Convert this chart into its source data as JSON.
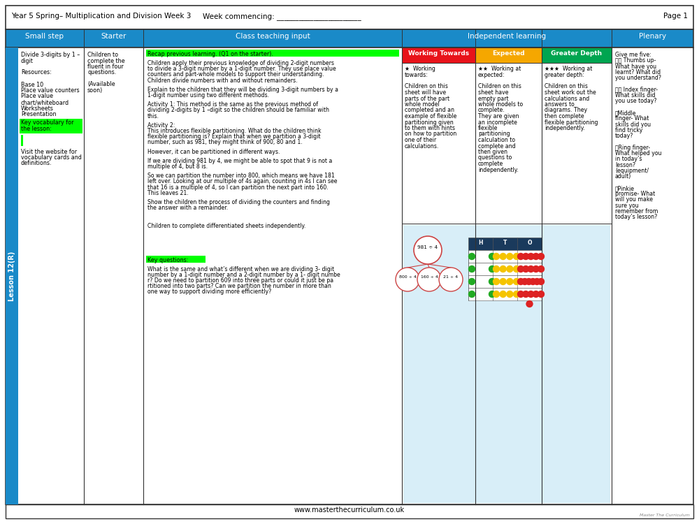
{
  "title_left": "Year 5 Spring– Multiplication and Division Week 3",
  "title_mid": "Week commencing: _______________________",
  "title_right": "Page 1",
  "header_bg": "#1a8ac8",
  "lesson_label": "Lesson 12(R)",
  "left_sidebar_color": "#1a8ac8",
  "green_highlight": "#00ff00",
  "small_step_text_lines": [
    "Divide 3-digits by 1 –",
    "digit",
    "",
    "Resources:",
    "",
    "Base 10",
    "Place value counters",
    "Place value",
    "chart/whiteboard",
    "Worksheets",
    "Presentation"
  ],
  "small_step_kv": "Key vocabulary for\nthe lesson:",
  "small_step_bottom": "Visit the website for\nvocabulary cards and\ndefinitions.",
  "starter_text": "Children to\ncomplete the\nfluent in four\nquestions.\n\n(Available\nsoon)",
  "teaching_p1": "Recap previous learning. (Q1 on the starter).",
  "teaching_p2_lines": [
    "Children apply their previous knowledge of dividing 2-digit numbers",
    "to divide a 3-digit number by a 1-digit number. They use place value",
    "counters and part-whole models to support their understanding.",
    "Children divide numbers with and without remainders."
  ],
  "teaching_p3_lines": [
    "Explain to the children that they will be dividing 3-digit numbers by a",
    "1-digit number using two different methods."
  ],
  "teaching_p4_lines": [
    "Activity 1: This method is the same as the previous method of",
    "dividing 2-digits by 1 –digit so the children should be familiar with",
    "this."
  ],
  "teaching_p5_lines": [
    "Activity 2:",
    "This introduces flexible partitioning. What do the children think",
    "flexible partitioning is? Explain that when we partition a 3-digit",
    "number, such as 981, they might think of 900, 80 and 1."
  ],
  "teaching_p6_lines": [
    "However, it can be partitioned in different ways."
  ],
  "teaching_p7_lines": [
    "If we are dividing 981 by 4, we might be able to spot that 9 is not a",
    "multiple of 4, but 8 is."
  ],
  "teaching_p8_lines": [
    "So we can partition the number into 800, which means we have 181",
    "left over. Looking at our multiple of 4s again, counting in 4s I can see",
    "that 16 is a multiple of 4, so I can partition the next part into 160.",
    "This leaves 21."
  ],
  "teaching_p9_lines": [
    "Show the children the process of dividing the counters and finding",
    "the answer with a remainder."
  ],
  "teaching_p10_lines": [
    "Children to complete differentiated sheets independently."
  ],
  "key_questions_label": "Key questions:",
  "key_questions_lines": [
    "What is the same and what’s different when we are dividing 3- digit",
    "number by a 1-digit number and a 2-digit number by a 1- digit numbe",
    "r? Do we need to partition 609 into three parts or could it just be pa",
    "rtitioned into two parts? Can we partition the number in more than",
    "one way to support dividing more efficiently?"
  ],
  "working_towards_header": "Working Towards",
  "working_towards_bg": "#e8131a",
  "working_towards_lines": [
    "★  Working",
    "towards:",
    "",
    "Children on this",
    "sheet will have",
    "parts of the part",
    "whole model",
    "completed and an",
    "example of flexible",
    "partitioning given",
    "to them with hints",
    "on how to partition",
    "one of their",
    "calculations."
  ],
  "expected_header": "Expected",
  "expected_bg": "#f5a700",
  "expected_lines": [
    "★★  Working at",
    "expected:",
    "",
    "Children on this",
    "sheet have",
    "empty part",
    "whole models to",
    "complete.",
    "They are given",
    "an incomplete",
    "flexible",
    "partitioning",
    "calculation to",
    "complete and",
    "then given",
    "questions to",
    "complete",
    "independently."
  ],
  "greater_depth_header": "Greater Depth",
  "greater_depth_bg": "#00a550",
  "greater_depth_lines": [
    "★★★  Working at",
    "greater depth:",
    "",
    "Children on this",
    "sheet work out the",
    "calculations and",
    "answers to",
    "diagrams. They",
    "then complete",
    "flexible partitioning",
    "independently."
  ],
  "plenary_lines": [
    "Give me five:",
    "👍✅ Thumbs up-",
    "What have you",
    "learnt? What did",
    "you understand?",
    "",
    "👆🏻 Index finger-",
    "What skills did",
    "you use today?",
    "",
    "👇Middle",
    "finger- What",
    "skills did you",
    "find tricky",
    "today?",
    "",
    "👉Ring finger-",
    "What helped you",
    "in today’s",
    "lesson?",
    "(equipment/",
    "adult)",
    "",
    "👎Pinkie",
    "promise- What",
    "will you make",
    "sure you",
    "remember from",
    "today’s lesson?"
  ],
  "footer_text": "www.masterthecurriculum.co.uk",
  "bg_color": "white",
  "border_color": "#333333"
}
